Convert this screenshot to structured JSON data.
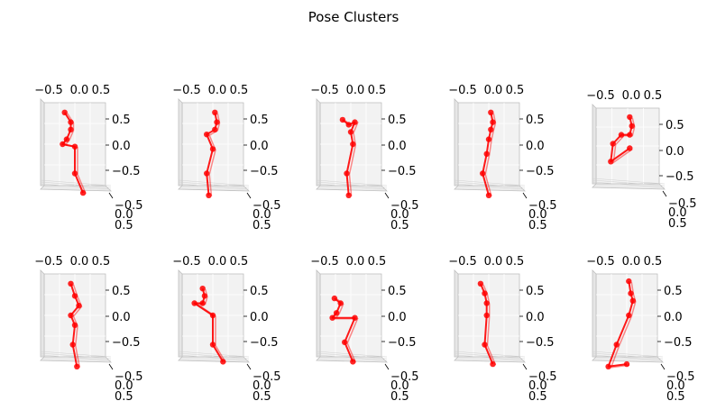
{
  "title": "Pose Clusters",
  "chart_data": {
    "type": "scatter",
    "projection": "3d",
    "title": "Pose Clusters",
    "grid_rows": 2,
    "grid_cols": 5,
    "line_color": "#ff0000",
    "pane_color": "#f2f2f2",
    "xticks": [
      "−0.5",
      "0.0",
      "0.5"
    ],
    "zticks": [
      "0.5",
      "0.0",
      "−0.5"
    ],
    "yticks": [
      "−0.5",
      "0.0",
      "0.5"
    ],
    "xlim": [
      -0.75,
      0.75
    ],
    "zlim": [
      -0.85,
      0.85
    ],
    "subplots": [
      {
        "joints": [
          [
            -0.25,
            0.65
          ],
          [
            -0.1,
            0.45
          ],
          [
            -0.1,
            0.3
          ],
          [
            -0.2,
            0.1
          ],
          [
            -0.3,
            0.0
          ],
          [
            0.0,
            -0.05
          ],
          [
            0.0,
            -0.6
          ],
          [
            0.2,
            -1.0
          ]
        ]
      },
      {
        "joints": [
          [
            0.05,
            0.65
          ],
          [
            0.1,
            0.45
          ],
          [
            0.05,
            0.3
          ],
          [
            -0.15,
            0.2
          ],
          [
            0.0,
            -0.1
          ],
          [
            -0.15,
            -0.6
          ],
          [
            -0.1,
            -1.05
          ]
        ]
      },
      {
        "joints": [
          [
            -0.2,
            0.5
          ],
          [
            -0.05,
            0.4
          ],
          [
            0.1,
            0.45
          ],
          [
            0.0,
            0.25
          ],
          [
            0.05,
            0.0
          ],
          [
            -0.1,
            -0.6
          ],
          [
            -0.05,
            -1.05
          ]
        ]
      },
      {
        "joints": [
          [
            0.05,
            0.65
          ],
          [
            0.1,
            0.45
          ],
          [
            0.05,
            0.3
          ],
          [
            0.0,
            0.1
          ],
          [
            -0.05,
            -0.2
          ],
          [
            -0.15,
            -0.6
          ],
          [
            0.0,
            -1.05
          ]
        ]
      },
      {
        "joints": [
          [
            0.05,
            0.65
          ],
          [
            0.1,
            0.45
          ],
          [
            0.05,
            0.25
          ],
          [
            -0.15,
            0.25
          ],
          [
            -0.35,
            0.05
          ],
          [
            -0.4,
            -0.35
          ],
          [
            0.05,
            -0.05
          ]
        ]
      },
      {
        "joints": [
          [
            -0.1,
            0.65
          ],
          [
            0.0,
            0.4
          ],
          [
            0.1,
            0.2
          ],
          [
            -0.1,
            0.0
          ],
          [
            0.0,
            -0.2
          ],
          [
            -0.05,
            -0.6
          ],
          [
            0.05,
            -1.05
          ]
        ]
      },
      {
        "joints": [
          [
            -0.25,
            0.55
          ],
          [
            -0.2,
            0.4
          ],
          [
            -0.25,
            0.25
          ],
          [
            -0.45,
            0.25
          ],
          [
            0.0,
            0.0
          ],
          [
            0.0,
            -0.6
          ],
          [
            0.25,
            -0.95
          ]
        ]
      },
      {
        "joints": [
          [
            -0.4,
            0.35
          ],
          [
            -0.25,
            0.25
          ],
          [
            -0.35,
            0.05
          ],
          [
            -0.45,
            -0.05
          ],
          [
            0.1,
            -0.05
          ],
          [
            -0.15,
            -0.55
          ],
          [
            0.05,
            -0.95
          ]
        ]
      },
      {
        "joints": [
          [
            -0.2,
            0.65
          ],
          [
            -0.1,
            0.45
          ],
          [
            -0.05,
            0.25
          ],
          [
            -0.05,
            0.0
          ],
          [
            -0.1,
            -0.6
          ],
          [
            0.1,
            -1.0
          ]
        ]
      },
      {
        "joints": [
          [
            0.05,
            0.7
          ],
          [
            0.1,
            0.45
          ],
          [
            0.15,
            0.3
          ],
          [
            0.05,
            0.0
          ],
          [
            -0.25,
            -0.6
          ],
          [
            -0.45,
            -1.05
          ],
          [
            0.0,
            -1.0
          ]
        ]
      }
    ]
  }
}
